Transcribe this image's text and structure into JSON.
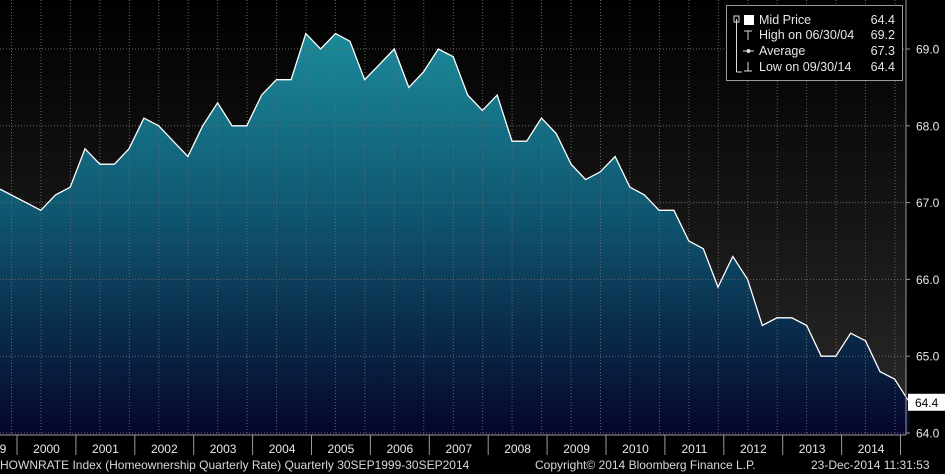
{
  "chart_data": {
    "type": "area",
    "title": "",
    "xlabel": "",
    "ylabel": "",
    "series": [
      {
        "name": "Mid Price",
        "x": [
          "1999-09-30",
          "1999-12-31",
          "2000-03-31",
          "2000-06-30",
          "2000-09-30",
          "2000-12-31",
          "2001-03-31",
          "2001-06-30",
          "2001-09-30",
          "2001-12-31",
          "2002-03-31",
          "2002-06-30",
          "2002-09-30",
          "2002-12-31",
          "2003-03-31",
          "2003-06-30",
          "2003-09-30",
          "2003-12-31",
          "2004-03-31",
          "2004-06-30",
          "2004-09-30",
          "2004-12-31",
          "2005-03-31",
          "2005-06-30",
          "2005-09-30",
          "2005-12-31",
          "2006-03-31",
          "2006-06-30",
          "2006-09-30",
          "2006-12-31",
          "2007-03-31",
          "2007-06-30",
          "2007-09-30",
          "2007-12-31",
          "2008-03-31",
          "2008-06-30",
          "2008-09-30",
          "2008-12-31",
          "2009-03-31",
          "2009-06-30",
          "2009-09-30",
          "2009-12-31",
          "2010-03-31",
          "2010-06-30",
          "2010-09-30",
          "2010-12-31",
          "2011-03-31",
          "2011-06-30",
          "2011-09-30",
          "2011-12-31",
          "2012-03-31",
          "2012-06-30",
          "2012-09-30",
          "2012-12-31",
          "2013-03-31",
          "2013-06-30",
          "2013-09-30",
          "2013-12-31",
          "2014-03-31",
          "2014-06-30",
          "2014-09-30"
        ],
        "values": [
          67.0,
          66.9,
          67.1,
          67.2,
          67.7,
          67.5,
          67.5,
          67.7,
          68.1,
          68.0,
          67.8,
          67.6,
          68.0,
          68.3,
          68.0,
          68.0,
          68.4,
          68.6,
          68.6,
          69.2,
          69.0,
          69.2,
          69.1,
          68.6,
          68.8,
          69.0,
          68.5,
          68.7,
          69.0,
          68.9,
          68.4,
          68.2,
          68.4,
          67.8,
          67.8,
          68.1,
          67.9,
          67.5,
          67.3,
          67.4,
          67.6,
          67.2,
          67.1,
          66.9,
          66.9,
          66.5,
          66.4,
          65.9,
          66.3,
          66.0,
          65.4,
          65.5,
          65.5,
          65.4,
          65.0,
          65.0,
          65.3,
          65.2,
          64.8,
          64.7,
          64.4
        ]
      }
    ],
    "ylim": [
      63.9,
      69.5
    ],
    "y_ticks": [
      "64.0",
      "65.0",
      "66.0",
      "67.0",
      "68.0",
      "69.0"
    ],
    "x_tick_labels": [
      "9",
      "2000",
      "2001",
      "2002",
      "2003",
      "2004",
      "2005",
      "2006",
      "2007",
      "2008",
      "2009",
      "2010",
      "2011",
      "2012",
      "2013",
      "2014"
    ],
    "last_value_label": "64.4",
    "grid": true,
    "legend_position": "top-right",
    "colors": {
      "background": "#000000",
      "area_top": "#1b8a9a",
      "area_bottom": "#05052a",
      "line": "#ffffff",
      "grid": "#666666"
    }
  },
  "legend": {
    "items": [
      {
        "icon": "white-square-icon",
        "label": "Mid Price",
        "value": "64.4"
      },
      {
        "icon": "high-marker-icon",
        "label": "High on 06/30/04",
        "value": "69.2"
      },
      {
        "icon": "average-marker-icon",
        "label": "Average",
        "value": "67.3"
      },
      {
        "icon": "low-marker-icon",
        "label": "Low on 09/30/14",
        "value": "64.4"
      }
    ]
  },
  "footer": {
    "ticker": "HOWNRATE Index (Homeownership Quarterly Rate)  Quarterly 30SEP1999-30SEP2014",
    "copyright": "Copyright© 2014 Bloomberg Finance L.P.",
    "timestamp": "23-Dec-2014 11:31:53"
  }
}
